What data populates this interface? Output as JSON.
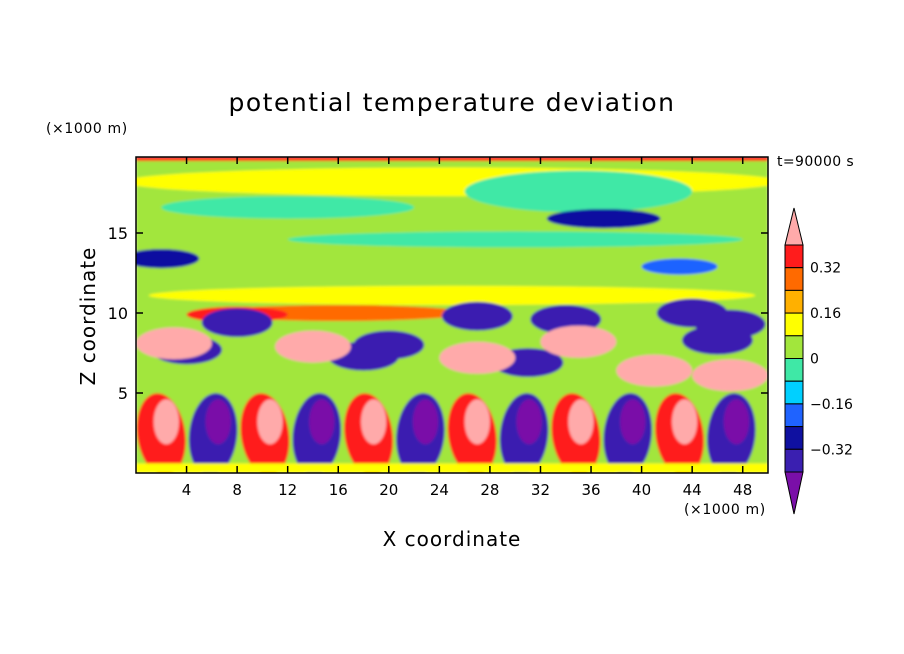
{
  "chart_data": {
    "type": "heatmap",
    "title": "potential temperature deviation",
    "xlabel": "X coordinate",
    "ylabel": "Z coordinate",
    "x_unit": "(×1000 m)",
    "y_unit": "(×1000 m)",
    "time_label": "t=90000 s",
    "x_ticks": [
      4,
      8,
      12,
      16,
      20,
      24,
      28,
      32,
      36,
      40,
      44,
      48
    ],
    "y_ticks": [
      5,
      10,
      15
    ],
    "xlim": [
      0,
      50
    ],
    "ylim": [
      0,
      19.75
    ],
    "colorbar": {
      "levels": [
        -0.4,
        -0.32,
        -0.24,
        -0.16,
        -0.08,
        0,
        0.08,
        0.16,
        0.24,
        0.32,
        0.4
      ],
      "tick_labels": [
        "0.32",
        "0.16",
        "0",
        "−0.16",
        "−0.32"
      ],
      "tick_values": [
        0.32,
        0.16,
        0,
        -0.16,
        -0.32
      ],
      "colors": [
        "#7a0fa8",
        "#3a1fb0",
        "#0f10a0",
        "#1f63ff",
        "#00d0ff",
        "#3fe8a6",
        "#a2e63c",
        "#ffff00",
        "#ffb000",
        "#ff6a00",
        "#ff1c1c",
        "#ffaaaa"
      ],
      "extend": "both"
    },
    "field_description": "Cross-section: convective plumes (alternating warm/cool) below 5 km, mixed warm/cool layer 5–10 km, near-neutral (green) stratosphere above with thin bands."
  }
}
